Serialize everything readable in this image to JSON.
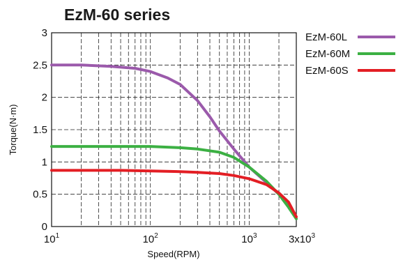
{
  "chart_data": {
    "type": "line",
    "title": "EzM-60 series",
    "xlabel": "Speed(RPM)",
    "ylabel": "Torque(N·m)",
    "xscale": "log",
    "xlim": [
      10,
      3000
    ],
    "ylim": [
      0,
      3
    ],
    "grid": true,
    "legend_position": "right",
    "x_tick_labels": [
      {
        "value": 10,
        "base": "10",
        "exp": "1"
      },
      {
        "value": 100,
        "base": "10",
        "exp": "2"
      },
      {
        "value": 1000,
        "base": "10",
        "exp": "3"
      },
      {
        "value": 3000,
        "base": "3x10",
        "exp": "3"
      }
    ],
    "y_tick_labels": [
      {
        "value": 0,
        "label": "0"
      },
      {
        "value": 0.5,
        "label": "0.5"
      },
      {
        "value": 1,
        "label": "1"
      },
      {
        "value": 1.5,
        "label": "1.5"
      },
      {
        "value": 2,
        "label": "2"
      },
      {
        "value": 2.5,
        "label": "2.5"
      },
      {
        "value": 3,
        "label": "3"
      }
    ],
    "series": [
      {
        "name": "EzM-60L",
        "color": "#9b5aab",
        "x": [
          10,
          20,
          40,
          70,
          100,
          150,
          200,
          300,
          400,
          500,
          700,
          1000,
          1500,
          2000,
          2500,
          3000
        ],
        "y": [
          2.5,
          2.5,
          2.48,
          2.45,
          2.4,
          2.3,
          2.2,
          1.95,
          1.7,
          1.48,
          1.2,
          0.92,
          0.68,
          0.5,
          0.32,
          0.12
        ]
      },
      {
        "name": "EzM-60M",
        "color": "#3cb043",
        "x": [
          10,
          30,
          100,
          200,
          300,
          500,
          700,
          1000,
          1500,
          2000,
          2500,
          3000
        ],
        "y": [
          1.24,
          1.24,
          1.24,
          1.22,
          1.2,
          1.15,
          1.07,
          0.92,
          0.7,
          0.5,
          0.3,
          0.12
        ]
      },
      {
        "name": "EzM-60S",
        "color": "#e31e24",
        "x": [
          10,
          50,
          100,
          200,
          300,
          500,
          700,
          1000,
          1500,
          2000,
          2500,
          3000
        ],
        "y": [
          0.87,
          0.87,
          0.86,
          0.85,
          0.84,
          0.82,
          0.79,
          0.74,
          0.65,
          0.52,
          0.38,
          0.15
        ]
      }
    ]
  }
}
